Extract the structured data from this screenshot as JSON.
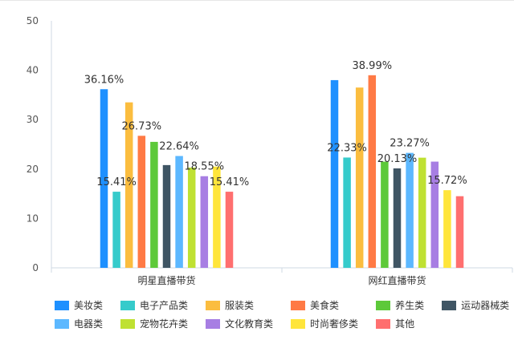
{
  "chart_data": {
    "type": "bar",
    "categories": [
      "明星直播带货",
      "网红直播带货"
    ],
    "ylim": [
      0,
      50
    ],
    "yticks": [
      0,
      10,
      20,
      30,
      40,
      50
    ],
    "grid": false,
    "legend_position": "bottom",
    "series": [
      {
        "name": "美妆类",
        "color": "#1e90ff",
        "values": [
          36.16,
          38.0
        ],
        "labels": [
          "36.16%",
          ""
        ]
      },
      {
        "name": "电子产品类",
        "color": "#36cbcb",
        "values": [
          15.41,
          22.33
        ],
        "labels": [
          "15.41%",
          "22.33%"
        ]
      },
      {
        "name": "服装类",
        "color": "#fbbd3f",
        "values": [
          33.5,
          36.5
        ],
        "labels": [
          "",
          ""
        ]
      },
      {
        "name": "美食类",
        "color": "#ff7a45",
        "values": [
          26.73,
          38.99
        ],
        "labels": [
          "26.73%",
          "38.99%"
        ]
      },
      {
        "name": "养生类",
        "color": "#5dc93a",
        "values": [
          25.5,
          21.5
        ],
        "labels": [
          "",
          ""
        ]
      },
      {
        "name": "运动器械类",
        "color": "#3f5564",
        "values": [
          20.8,
          20.13
        ],
        "labels": [
          "",
          "20.13%"
        ]
      },
      {
        "name": "电器类",
        "color": "#5cb8ff",
        "values": [
          22.64,
          23.27
        ],
        "labels": [
          "22.64%",
          "23.27%"
        ]
      },
      {
        "name": "宠物花卉类",
        "color": "#bfe132",
        "values": [
          20.3,
          22.3
        ],
        "labels": [
          "",
          ""
        ]
      },
      {
        "name": "文化教育类",
        "color": "#a77ee3",
        "values": [
          18.55,
          21.5
        ],
        "labels": [
          "18.55%",
          ""
        ]
      },
      {
        "name": "时尚奢侈类",
        "color": "#ffe53b",
        "values": [
          20.5,
          15.72
        ],
        "labels": [
          "",
          "15.72%"
        ]
      },
      {
        "name": "其他",
        "color": "#ff6f6f",
        "values": [
          15.41,
          14.5
        ],
        "labels": [
          "15.41%",
          ""
        ]
      }
    ]
  }
}
